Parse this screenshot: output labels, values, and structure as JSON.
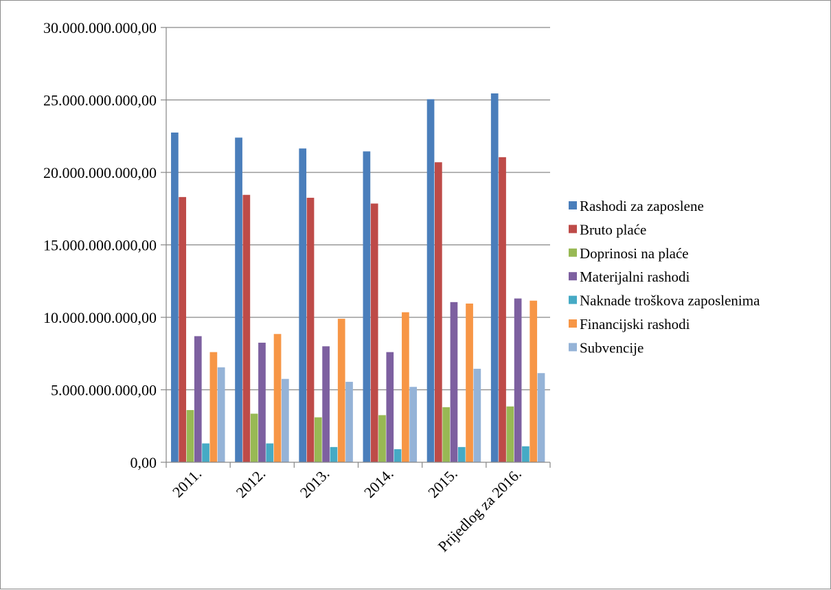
{
  "chart_data": {
    "type": "bar",
    "title": "",
    "xlabel": "",
    "ylabel": "",
    "categories": [
      "2011.",
      "2012.",
      "2013.",
      "2014.",
      "2015.",
      "Prijedlog za 2016."
    ],
    "ylim": [
      0,
      30000000000
    ],
    "y_ticks": [
      0,
      5000000000,
      10000000000,
      15000000000,
      20000000000,
      25000000000,
      30000000000
    ],
    "y_tick_labels": [
      "0,00",
      "5.000.000.000,00",
      "10.000.000.000,00",
      "15.000.000.000,00",
      "20.000.000.000,00",
      "25.000.000.000,00",
      "30.000.000.000,00"
    ],
    "grid": true,
    "legend_position": "right",
    "series": [
      {
        "name": "Rashodi za zaposlene",
        "color": "#4a7ebb",
        "values": [
          22750000000,
          22400000000,
          21650000000,
          21450000000,
          25050000000,
          25450000000
        ]
      },
      {
        "name": "Bruto plaće",
        "color": "#be4b48",
        "values": [
          18300000000,
          18450000000,
          18250000000,
          17850000000,
          20700000000,
          21050000000
        ]
      },
      {
        "name": "Doprinosi na plaće",
        "color": "#98b954",
        "values": [
          3600000000,
          3350000000,
          3100000000,
          3250000000,
          3800000000,
          3850000000
        ]
      },
      {
        "name": "Materijalni rashodi",
        "color": "#7d60a0",
        "values": [
          8700000000,
          8250000000,
          8000000000,
          7600000000,
          11050000000,
          11300000000
        ]
      },
      {
        "name": "Naknade troškova zaposlenima",
        "color": "#46aac5",
        "values": [
          1300000000,
          1300000000,
          1050000000,
          900000000,
          1050000000,
          1100000000
        ]
      },
      {
        "name": "Financijski rashodi",
        "color": "#f79646",
        "values": [
          7600000000,
          8850000000,
          9900000000,
          10350000000,
          10950000000,
          11150000000
        ]
      },
      {
        "name": "Subvencije",
        "color": "#95b3d7",
        "values": [
          6550000000,
          5750000000,
          5550000000,
          5200000000,
          6450000000,
          6150000000
        ]
      }
    ]
  }
}
